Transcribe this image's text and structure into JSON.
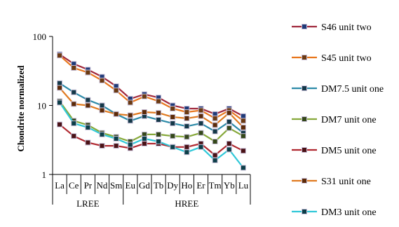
{
  "chart_data": {
    "type": "line",
    "ylabel": "Chondrite normalized",
    "xlabel": "",
    "yscale": "log",
    "ylim": [
      1,
      100
    ],
    "yticks": [
      "1",
      "10",
      "100"
    ],
    "grid": false,
    "legend_position": "right",
    "categories": [
      "La",
      "Ce",
      "Pr",
      "Nd",
      "Sm",
      "Eu",
      "Gd",
      "Tb",
      "Dy",
      "Ho",
      "Er",
      "Tm",
      "Yb",
      "Lu"
    ],
    "groups": [
      {
        "label": "LREE",
        "from": 0,
        "to": 4
      },
      {
        "label": "HREE",
        "from": 5,
        "to": 13
      }
    ],
    "series": [
      {
        "name": "S46 unit two",
        "color": "#a0283c",
        "marker_color": "#1f3a78",
        "values": [
          55,
          40,
          33,
          26,
          19,
          12.5,
          14.5,
          13,
          10,
          9,
          9,
          7.5,
          9,
          7
        ]
      },
      {
        "name": "S45 unit two",
        "color": "#e8761c",
        "marker_color": "#6b3a12",
        "values": [
          53,
          35,
          30,
          23,
          16.5,
          11,
          13.5,
          11.5,
          9,
          8,
          8.5,
          6.5,
          8.5,
          6
        ]
      },
      {
        "name": "DM7.5 unit one",
        "color": "#2d8aa8",
        "marker_color": "#143848",
        "values": [
          21,
          15.5,
          12,
          10,
          7.5,
          6,
          7,
          6.2,
          5.5,
          5,
          5.5,
          4.2,
          5.8,
          4
        ]
      },
      {
        "name": "DM7 unit one",
        "color": "#86a83a",
        "marker_color": "#34471a",
        "values": [
          11.5,
          6,
          5.2,
          4,
          3.5,
          3,
          3.8,
          3.8,
          3.6,
          3.5,
          4,
          3,
          4.7,
          3.6
        ]
      },
      {
        "name": "DM5 unit one",
        "color": "#b02830",
        "marker_color": "#4a1216",
        "values": [
          5.3,
          3.6,
          2.9,
          2.6,
          2.6,
          2.4,
          2.8,
          2.8,
          2.5,
          2.5,
          2.8,
          1.9,
          2.8,
          2.2
        ]
      },
      {
        "name": "S31 unit one",
        "color": "#e07a20",
        "marker_color": "#5c2a08",
        "values": [
          18,
          10.5,
          10,
          8.5,
          7.5,
          7.2,
          8,
          7.8,
          6.8,
          6.5,
          7,
          5.2,
          7.8,
          4.8
        ]
      },
      {
        "name": "DM3 unit one",
        "color": "#30c8d8",
        "marker_color": "#0c3e48",
        "values": [
          11,
          5.5,
          4.8,
          3.8,
          3.3,
          2.7,
          3.3,
          3,
          2.5,
          2.1,
          2.5,
          1.6,
          2.3,
          1.25
        ]
      }
    ]
  }
}
